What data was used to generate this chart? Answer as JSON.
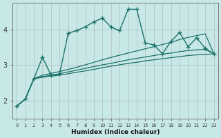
{
  "xlabel": "Humidex (Indice chaleur)",
  "bg_color": "#c8e8e8",
  "line_color": "#1a7068",
  "grid_color": "#b8d8d8",
  "x": [
    0,
    1,
    2,
    3,
    4,
    5,
    6,
    7,
    8,
    9,
    10,
    11,
    12,
    13,
    14,
    15,
    16,
    17,
    18,
    19,
    20,
    21,
    22,
    23
  ],
  "y_main": [
    1.85,
    2.05,
    2.62,
    3.22,
    2.72,
    2.75,
    3.9,
    3.97,
    4.08,
    4.22,
    4.32,
    4.07,
    3.97,
    4.57,
    4.57,
    3.62,
    3.57,
    3.32,
    3.67,
    3.92,
    3.52,
    3.77,
    3.47,
    3.32
  ],
  "y_fan_high": [
    1.85,
    2.05,
    2.62,
    2.72,
    2.77,
    2.82,
    2.88,
    2.94,
    3.01,
    3.08,
    3.15,
    3.22,
    3.28,
    3.34,
    3.4,
    3.46,
    3.52,
    3.58,
    3.64,
    3.72,
    3.78,
    3.83,
    3.88,
    3.32
  ],
  "y_fan_mid": [
    1.85,
    2.05,
    2.62,
    2.68,
    2.72,
    2.76,
    2.81,
    2.86,
    2.91,
    2.96,
    3.01,
    3.05,
    3.1,
    3.15,
    3.19,
    3.23,
    3.27,
    3.31,
    3.34,
    3.38,
    3.41,
    3.43,
    3.44,
    3.32
  ],
  "y_fan_low": [
    1.85,
    2.05,
    2.62,
    2.66,
    2.69,
    2.72,
    2.76,
    2.8,
    2.84,
    2.88,
    2.93,
    2.97,
    3.01,
    3.05,
    3.08,
    3.12,
    3.15,
    3.18,
    3.21,
    3.24,
    3.27,
    3.29,
    3.3,
    3.32
  ],
  "ylim": [
    1.5,
    4.75
  ],
  "yticks": [
    2,
    3,
    4
  ],
  "xticks": [
    0,
    1,
    2,
    3,
    4,
    5,
    6,
    7,
    8,
    9,
    10,
    11,
    12,
    13,
    14,
    15,
    16,
    17,
    18,
    19,
    20,
    21,
    22,
    23
  ]
}
